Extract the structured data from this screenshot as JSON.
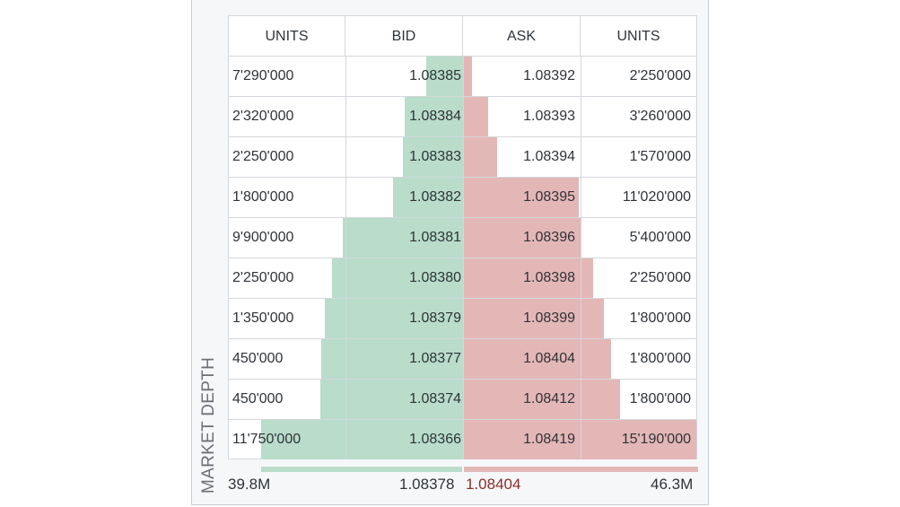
{
  "side_label": "MARKET DEPTH",
  "headers": {
    "bid_units": "UNITS",
    "bid": "BID",
    "ask": "ASK",
    "ask_units": "UNITS"
  },
  "rows": [
    {
      "bid_units": "7'290'000",
      "bid": "1.08385",
      "ask": "1.08392",
      "ask_units": "2'250'000"
    },
    {
      "bid_units": "2'320'000",
      "bid": "1.08384",
      "ask": "1.08393",
      "ask_units": "3'260'000"
    },
    {
      "bid_units": "2'250'000",
      "bid": "1.08383",
      "ask": "1.08394",
      "ask_units": "1'570'000"
    },
    {
      "bid_units": "1'800'000",
      "bid": "1.08382",
      "ask": "1.08395",
      "ask_units": "11'020'000"
    },
    {
      "bid_units": "9'900'000",
      "bid": "1.08381",
      "ask": "1.08396",
      "ask_units": "5'400'000"
    },
    {
      "bid_units": "2'250'000",
      "bid": "1.08380",
      "ask": "1.08398",
      "ask_units": "2'250'000"
    },
    {
      "bid_units": "1'350'000",
      "bid": "1.08379",
      "ask": "1.08399",
      "ask_units": "1'800'000"
    },
    {
      "bid_units": "450'000",
      "bid": "1.08377",
      "ask": "1.08404",
      "ask_units": "1'800'000"
    },
    {
      "bid_units": "450'000",
      "bid": "1.08374",
      "ask": "1.08412",
      "ask_units": "1'800'000"
    },
    {
      "bid_units": "11'750'000",
      "bid": "1.08366",
      "ask": "1.08419",
      "ask_units": "15'190'000"
    }
  ],
  "footer": {
    "bid_total": "39.8M",
    "bid_avg": "1.08378",
    "ask_avg": "1.08404",
    "ask_total": "46.3M"
  },
  "colors": {
    "bid_bar": "#b9dccb",
    "ask_bar": "#e4b7b7",
    "ask_avg_text": "#8b2f2a",
    "text": "#2f3338"
  }
}
